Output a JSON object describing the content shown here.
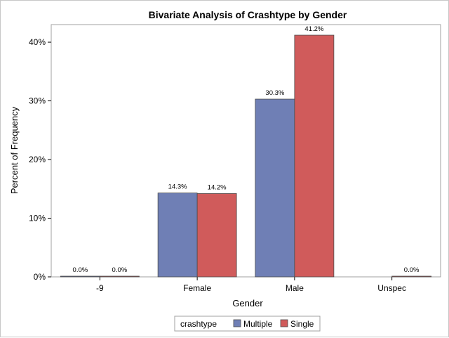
{
  "chart_data": {
    "type": "bar",
    "title": "Bivariate Analysis of Crashtype by Gender",
    "xlabel": "Gender",
    "ylabel": "Percent of Frequency",
    "categories": [
      "-9",
      "Female",
      "Male",
      "Unspec"
    ],
    "series": [
      {
        "name": "Multiple",
        "color": "#6f7fb5",
        "values": [
          0.0,
          14.3,
          30.3,
          null
        ],
        "labels": [
          "0.0%",
          "14.3%",
          "30.3%",
          ""
        ]
      },
      {
        "name": "Single",
        "color": "#d05b5b",
        "values": [
          0.0,
          14.2,
          41.2,
          0.0
        ],
        "labels": [
          "0.0%",
          "14.2%",
          "41.2%",
          "0.0%"
        ]
      }
    ],
    "ylim": [
      0,
      43
    ],
    "yticks": [
      0,
      10,
      20,
      30,
      40
    ],
    "ytick_labels": [
      "0%",
      "10%",
      "20%",
      "30%",
      "40%"
    ],
    "legend": {
      "title": "crashtype",
      "position": "bottom-center"
    },
    "grid": false
  }
}
